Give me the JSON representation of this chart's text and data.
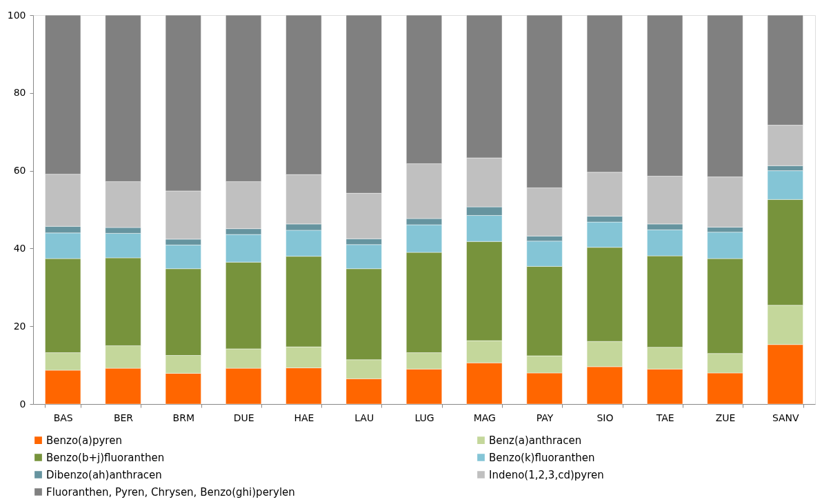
{
  "chart_data": {
    "type": "bar",
    "stacked": true,
    "categories": [
      "BAS",
      "BER",
      "BRM",
      "DUE",
      "HAE",
      "LAU",
      "LUG",
      "MAG",
      "PAY",
      "SIO",
      "TAE",
      "ZUE",
      "SANV"
    ],
    "series": [
      {
        "name": "Benzo(a)pyren",
        "color": "#ff6600",
        "values": [
          8.7,
          9.2,
          7.9,
          9.2,
          9.3,
          6.5,
          9.0,
          10.6,
          8.0,
          9.6,
          9.0,
          8.0,
          15.3
        ]
      },
      {
        "name": "Benz(a)anthracen",
        "color": "#c4d79b",
        "values": [
          4.5,
          5.8,
          4.6,
          5.0,
          5.4,
          4.9,
          4.2,
          5.7,
          4.4,
          6.5,
          5.6,
          5.0,
          10.1
        ]
      },
      {
        "name": "Benzo(b+j)fluoranthen",
        "color": "#77933c",
        "values": [
          24.2,
          22.6,
          22.3,
          22.3,
          23.3,
          23.4,
          25.8,
          25.5,
          23.0,
          24.2,
          23.5,
          24.4,
          27.2
        ]
      },
      {
        "name": "Benzo(k)fluoranthen",
        "color": "#84c5d6",
        "values": [
          6.6,
          6.3,
          6.1,
          7.1,
          6.7,
          6.2,
          7.1,
          6.7,
          6.5,
          6.5,
          6.7,
          6.8,
          7.4
        ]
      },
      {
        "name": "Dibenzo(ah)anthracen",
        "color": "#66949f",
        "values": [
          1.7,
          1.5,
          1.5,
          1.5,
          1.6,
          1.5,
          1.6,
          2.2,
          1.3,
          1.5,
          1.5,
          1.3,
          1.3
        ]
      },
      {
        "name": "Indeno(1,2,3,cd)pyren",
        "color": "#c0c0c0",
        "values": [
          13.4,
          11.8,
          12.4,
          12.1,
          12.7,
          11.7,
          14.1,
          12.6,
          12.4,
          11.3,
          12.3,
          12.9,
          10.4
        ]
      },
      {
        "name": "Fluoranthen, Pyren, Chrysen, Benzo(ghi)perylen",
        "color": "#808080",
        "values": [
          40.9,
          42.8,
          45.2,
          42.8,
          41.0,
          45.8,
          38.2,
          36.7,
          44.4,
          40.4,
          41.4,
          41.6,
          28.3
        ]
      }
    ],
    "ylim": [
      0,
      100
    ],
    "yticks": [
      0,
      20,
      40,
      60,
      80,
      100
    ],
    "grid": false,
    "legend": "bottom"
  }
}
